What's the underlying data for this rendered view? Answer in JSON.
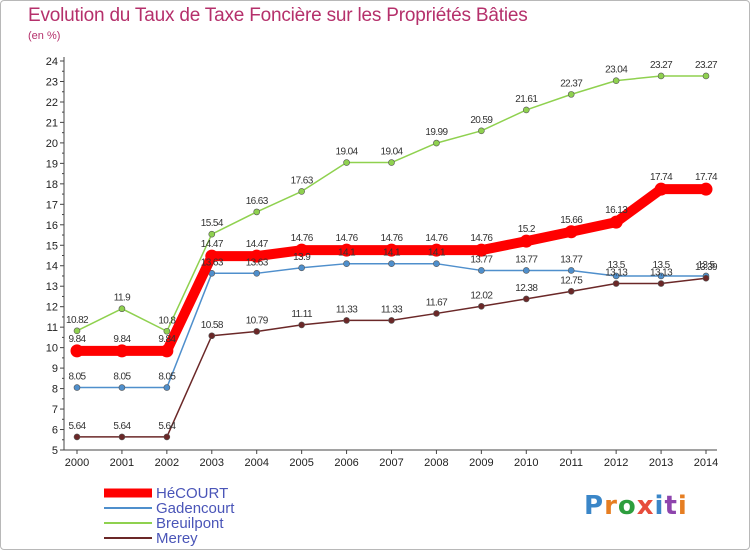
{
  "chart_data": {
    "type": "line",
    "title": "Evolution du Taux de Taxe Foncière sur les Propriétés Bâties",
    "subtitle": "(en %)",
    "x": [
      "2000",
      "2001",
      "2002",
      "2003",
      "2004",
      "2005",
      "2006",
      "2007",
      "2008",
      "2009",
      "2010",
      "2011",
      "2012",
      "2013",
      "2014"
    ],
    "ylim": [
      5,
      24
    ],
    "yticks": [
      5,
      6,
      7,
      8,
      9,
      10,
      11,
      12,
      13,
      14,
      15,
      16,
      17,
      18,
      19,
      20,
      21,
      22,
      23,
      24
    ],
    "grid": false,
    "legend": "bottom-left",
    "series": [
      {
        "name": "Breuilpont",
        "color": "#8fd14f",
        "values": [
          10.82,
          11.9,
          10.8,
          15.54,
          16.63,
          17.63,
          19.04,
          19.04,
          19.99,
          20.59,
          21.61,
          22.37,
          23.04,
          23.27,
          23.27
        ],
        "labels": [
          "10.82",
          "11.9",
          "10.8",
          "15.54",
          "16.63",
          "17.63",
          "19.04",
          "19.04",
          "19.99",
          "20.59",
          "21.61",
          "22.37",
          "23.04",
          "23.27",
          "23.27"
        ]
      },
      {
        "name": "Gadencourt",
        "color": "#4f8fcc",
        "values": [
          8.05,
          8.05,
          8.05,
          13.63,
          13.63,
          13.9,
          14.1,
          14.1,
          14.1,
          13.77,
          13.77,
          13.77,
          13.5,
          13.5,
          13.5
        ],
        "labels": [
          "8.05",
          "8.05",
          "8.05",
          "13.63",
          "13.63",
          "13.9",
          "14.1",
          "14.1",
          "14.1",
          "13.77",
          "13.77",
          "13.77",
          "13.5",
          "13.5",
          "13.5"
        ]
      },
      {
        "name": "Merey",
        "color": "#6b2828",
        "values": [
          5.64,
          5.64,
          5.64,
          10.58,
          10.79,
          11.11,
          11.33,
          11.33,
          11.67,
          12.02,
          12.38,
          12.75,
          13.13,
          13.13,
          13.39
        ],
        "labels": [
          "5.64",
          "5.64",
          "5.64",
          "10.58",
          "10.79",
          "11.11",
          "11.33",
          "11.33",
          "11.67",
          "12.02",
          "12.38",
          "12.75",
          "13.13",
          "13.13",
          "13.39"
        ]
      },
      {
        "name": "HéCOURT",
        "color": "#ff0000",
        "values": [
          9.84,
          9.84,
          9.84,
          14.47,
          14.47,
          14.76,
          14.76,
          14.76,
          14.76,
          14.76,
          15.2,
          15.66,
          16.13,
          17.74,
          17.74
        ],
        "labels": [
          "9.84",
          "9.84",
          "9.84",
          "14.47",
          "14.47",
          "14.76",
          "14.76",
          "14.76",
          "14.76",
          "14.76",
          "15.2",
          "15.66",
          "16.13",
          "17.74",
          "17.74"
        ]
      }
    ]
  },
  "logo": {
    "letters": [
      {
        "ch": "P",
        "color": "#3a86c8"
      },
      {
        "ch": "r",
        "color": "#e67e22"
      },
      {
        "ch": "o",
        "color": "#2e9e3e"
      },
      {
        "ch": "x",
        "color": "#e74c3c"
      },
      {
        "ch": "i",
        "color": "#3a86c8"
      },
      {
        "ch": "t",
        "color": "#8e44ad"
      },
      {
        "ch": "i",
        "color": "#e67e22"
      }
    ]
  }
}
